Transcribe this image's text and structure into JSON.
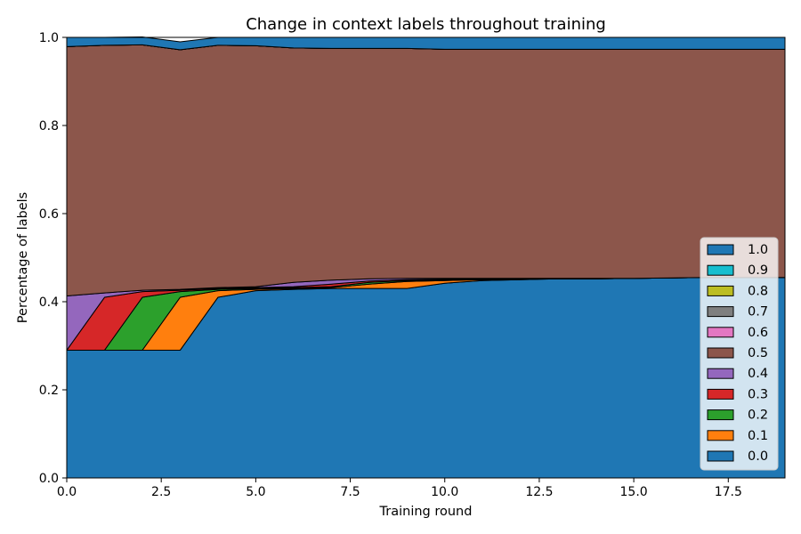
{
  "chart_data": {
    "type": "area",
    "stacked": true,
    "title": "Change in context labels throughout training",
    "xlabel": "Training round",
    "ylabel": "Percentage of labels",
    "xlim": [
      0,
      19
    ],
    "ylim": [
      0,
      1
    ],
    "xticks": [
      0.0,
      2.5,
      5.0,
      7.5,
      10.0,
      12.5,
      15.0,
      17.5
    ],
    "xtick_labels": [
      "0.0",
      "2.5",
      "5.0",
      "7.5",
      "10.0",
      "12.5",
      "15.0",
      "17.5"
    ],
    "yticks": [
      0.0,
      0.2,
      0.4,
      0.6,
      0.8,
      1.0
    ],
    "ytick_labels": [
      "0.0",
      "0.2",
      "0.4",
      "0.6",
      "0.8",
      "1.0"
    ],
    "legend_position": "lower-right",
    "grid": false,
    "x": [
      0,
      1,
      2,
      3,
      4,
      5,
      6,
      7,
      8,
      9,
      10,
      11,
      12,
      13,
      14,
      15,
      16,
      17,
      18,
      19
    ],
    "series": [
      {
        "name": "0.0",
        "color": "#1f77b4",
        "values": [
          0.29,
          0.29,
          0.29,
          0.29,
          0.41,
          0.425,
          0.428,
          0.43,
          0.43,
          0.43,
          0.442,
          0.448,
          0.45,
          0.452,
          0.452,
          0.453,
          0.454,
          0.455,
          0.455,
          0.455
        ]
      },
      {
        "name": "0.1",
        "color": "#ff7f0e",
        "values": [
          0,
          0,
          0,
          0.12,
          0.015,
          0.003,
          0.002,
          0.002,
          0.01,
          0.016,
          0.006,
          0.002,
          0.001,
          0,
          0,
          0,
          0,
          0,
          0,
          0
        ]
      },
      {
        "name": "0.2",
        "color": "#2ca02c",
        "values": [
          0,
          0,
          0.12,
          0.013,
          0.003,
          0.002,
          0.002,
          0.002,
          0.004,
          0.002,
          0.001,
          0,
          0,
          0,
          0,
          0,
          0,
          0,
          0,
          0
        ]
      },
      {
        "name": "0.3",
        "color": "#d62728",
        "values": [
          0,
          0.12,
          0.013,
          0.003,
          0.002,
          0.002,
          0.002,
          0.006,
          0.003,
          0.002,
          0.002,
          0.001,
          0,
          0,
          0,
          0,
          0,
          0,
          0,
          0
        ]
      },
      {
        "name": "0.4",
        "color": "#9467bd",
        "values": [
          0.123,
          0.01,
          0.003,
          0.002,
          0.002,
          0.002,
          0.01,
          0.009,
          0.005,
          0.003,
          0.002,
          0.002,
          0.002,
          0.001,
          0.001,
          0,
          0,
          0,
          0,
          0
        ]
      },
      {
        "name": "0.5",
        "color": "#8c564b",
        "values": [
          0.566,
          0.562,
          0.557,
          0.544,
          0.55,
          0.547,
          0.532,
          0.526,
          0.523,
          0.522,
          0.52,
          0.52,
          0.52,
          0.52,
          0.52,
          0.52,
          0.519,
          0.518,
          0.518,
          0.518
        ]
      },
      {
        "name": "0.6",
        "color": "#e377c2",
        "values": [
          0,
          0,
          0,
          0,
          0,
          0,
          0,
          0,
          0,
          0,
          0,
          0,
          0,
          0,
          0,
          0,
          0,
          0,
          0,
          0
        ]
      },
      {
        "name": "0.7",
        "color": "#7f7f7f",
        "values": [
          0,
          0,
          0,
          0,
          0,
          0,
          0,
          0,
          0,
          0,
          0,
          0,
          0,
          0,
          0,
          0,
          0,
          0,
          0,
          0
        ]
      },
      {
        "name": "0.8",
        "color": "#bcbd22",
        "values": [
          0,
          0,
          0,
          0,
          0,
          0,
          0,
          0,
          0,
          0,
          0,
          0,
          0,
          0,
          0,
          0,
          0,
          0,
          0,
          0
        ]
      },
      {
        "name": "0.9",
        "color": "#17becf",
        "values": [
          0,
          0,
          0,
          0,
          0,
          0,
          0,
          0,
          0,
          0,
          0,
          0,
          0,
          0,
          0,
          0,
          0,
          0,
          0,
          0
        ]
      },
      {
        "name": "1.0",
        "color": "#1f77b4",
        "values": [
          0.021,
          0.018,
          0.018,
          0.018,
          0.018,
          0.019,
          0.024,
          0.025,
          0.025,
          0.025,
          0.027,
          0.027,
          0.027,
          0.027,
          0.027,
          0.027,
          0.027,
          0.027,
          0.027,
          0.027
        ]
      }
    ],
    "legend_order": [
      "1.0",
      "0.9",
      "0.8",
      "0.7",
      "0.6",
      "0.5",
      "0.4",
      "0.3",
      "0.2",
      "0.1",
      "0.0"
    ]
  }
}
